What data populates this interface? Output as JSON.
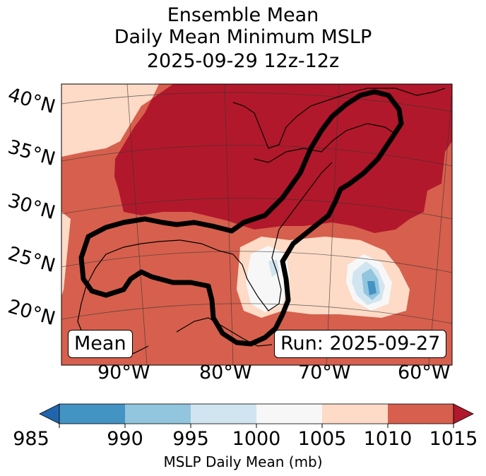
{
  "title": {
    "line1": "Ensemble Mean",
    "line2": "Daily Mean Minimum MSLP",
    "line3": "2025-09-29 12z-12z"
  },
  "map": {
    "lat_labels": [
      "40°N",
      "35°N",
      "30°N",
      "25°N",
      "20°N"
    ],
    "lon_labels": [
      "90°W",
      "80°W",
      "70°W",
      "60°W"
    ],
    "mean_label": "Mean",
    "run_label": "Run: 2025-09-27",
    "colors": {
      "c985": "#2166ac",
      "c990": "#4393c3",
      "c995": "#92c5de",
      "c1000": "#d1e5f0",
      "c1005": "#f7f7f7",
      "c1010": "#fddbc7",
      "c1015": "#d6604d",
      "cover": "#b2182b",
      "contour": "#000000"
    }
  },
  "colorbar": {
    "ticks": [
      "985",
      "990",
      "995",
      "1000",
      "1005",
      "1010",
      "1015"
    ],
    "label": "MSLP Daily Mean (mb)",
    "segment_colors": [
      "#4393c3",
      "#92c5de",
      "#d1e5f0",
      "#f7f7f7",
      "#fddbc7",
      "#d6604d"
    ],
    "under_color": "#2166ac",
    "over_color": "#b2182b"
  }
}
